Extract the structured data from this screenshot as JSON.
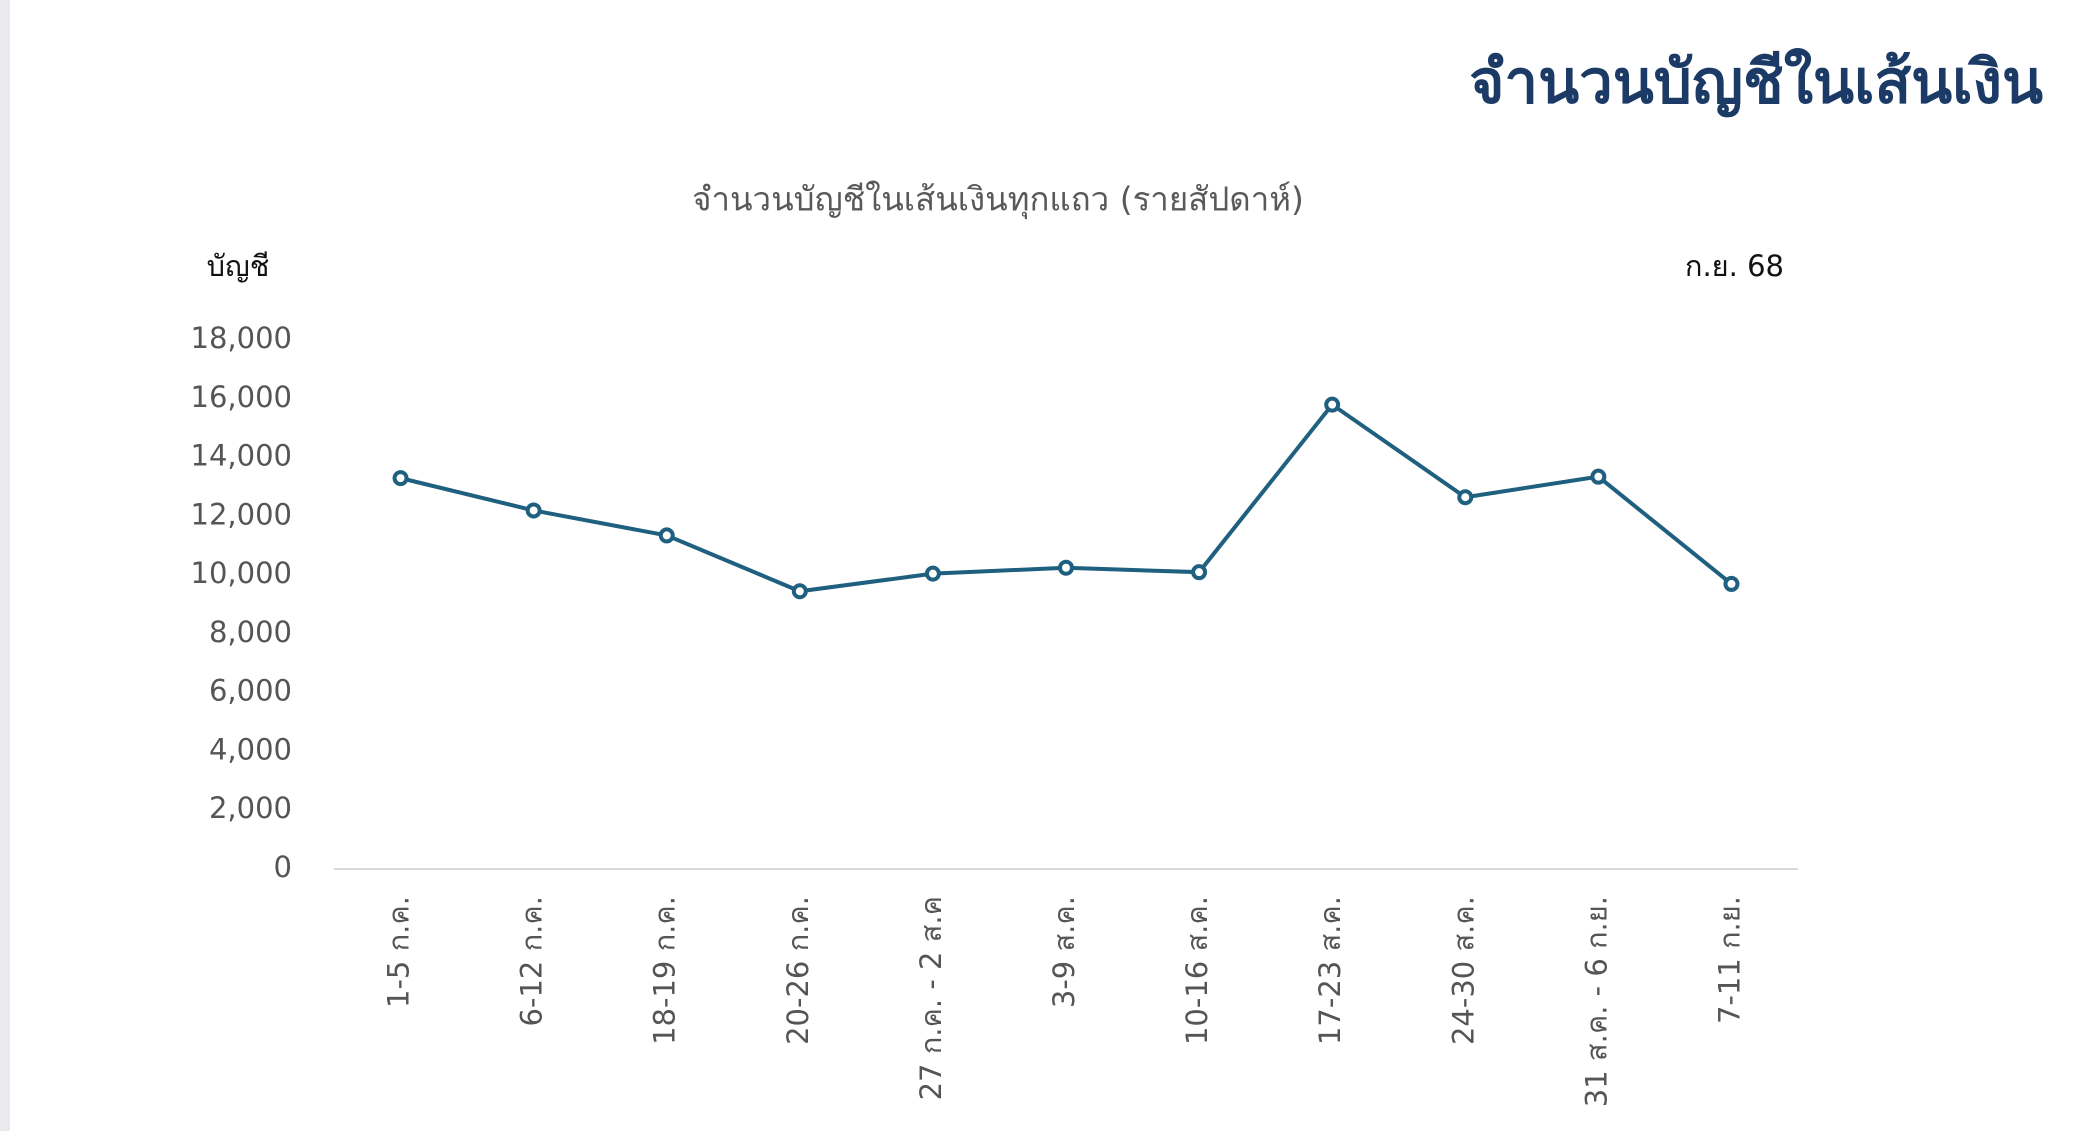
{
  "page_title": "จำนวนบัญชีในเส้นเงิน",
  "chart_data": {
    "type": "line",
    "title": "จำนวนบัญชีในเส้นเงินทุกแถว (รายสัปดาห์)",
    "y_axis_label": "บัญชี",
    "annotation": "ก.ย. 68",
    "categories": [
      "1-5 ก.ค.",
      "6-12 ก.ค.",
      "18-19 ก.ค.",
      "20-26 ก.ค.",
      "27 ก.ค. - 2 ส.ค",
      "3-9 ส.ค.",
      "10-16 ส.ค.",
      "17-23 ส.ค.",
      "24-30 ส.ค.",
      "31 ส.ค. - 6 ก.ย.",
      "7-11 ก.ย."
    ],
    "series": [
      {
        "color": "#1f5f7f",
        "values": [
          13300,
          12200,
          11350,
          9450,
          10050,
          10250,
          10100,
          15800,
          12650,
          13350,
          9700
        ]
      }
    ],
    "ylim": [
      0,
      18000
    ],
    "yticks": [
      0,
      {
        "value": 2000,
        "label": "2,000"
      },
      {
        "value": 4000,
        "label": "4,000"
      },
      {
        "value": 6000,
        "label": "6,000"
      },
      {
        "value": 8000,
        "label": "8,000"
      },
      {
        "value": 10000,
        "label": "10,000"
      },
      {
        "value": 12000,
        "label": "12,000"
      },
      {
        "value": 14000,
        "label": "14,000"
      },
      {
        "value": 16000,
        "label": "16,000"
      },
      {
        "value": 18000,
        "label": "18,000"
      }
    ],
    "grid": false
  }
}
